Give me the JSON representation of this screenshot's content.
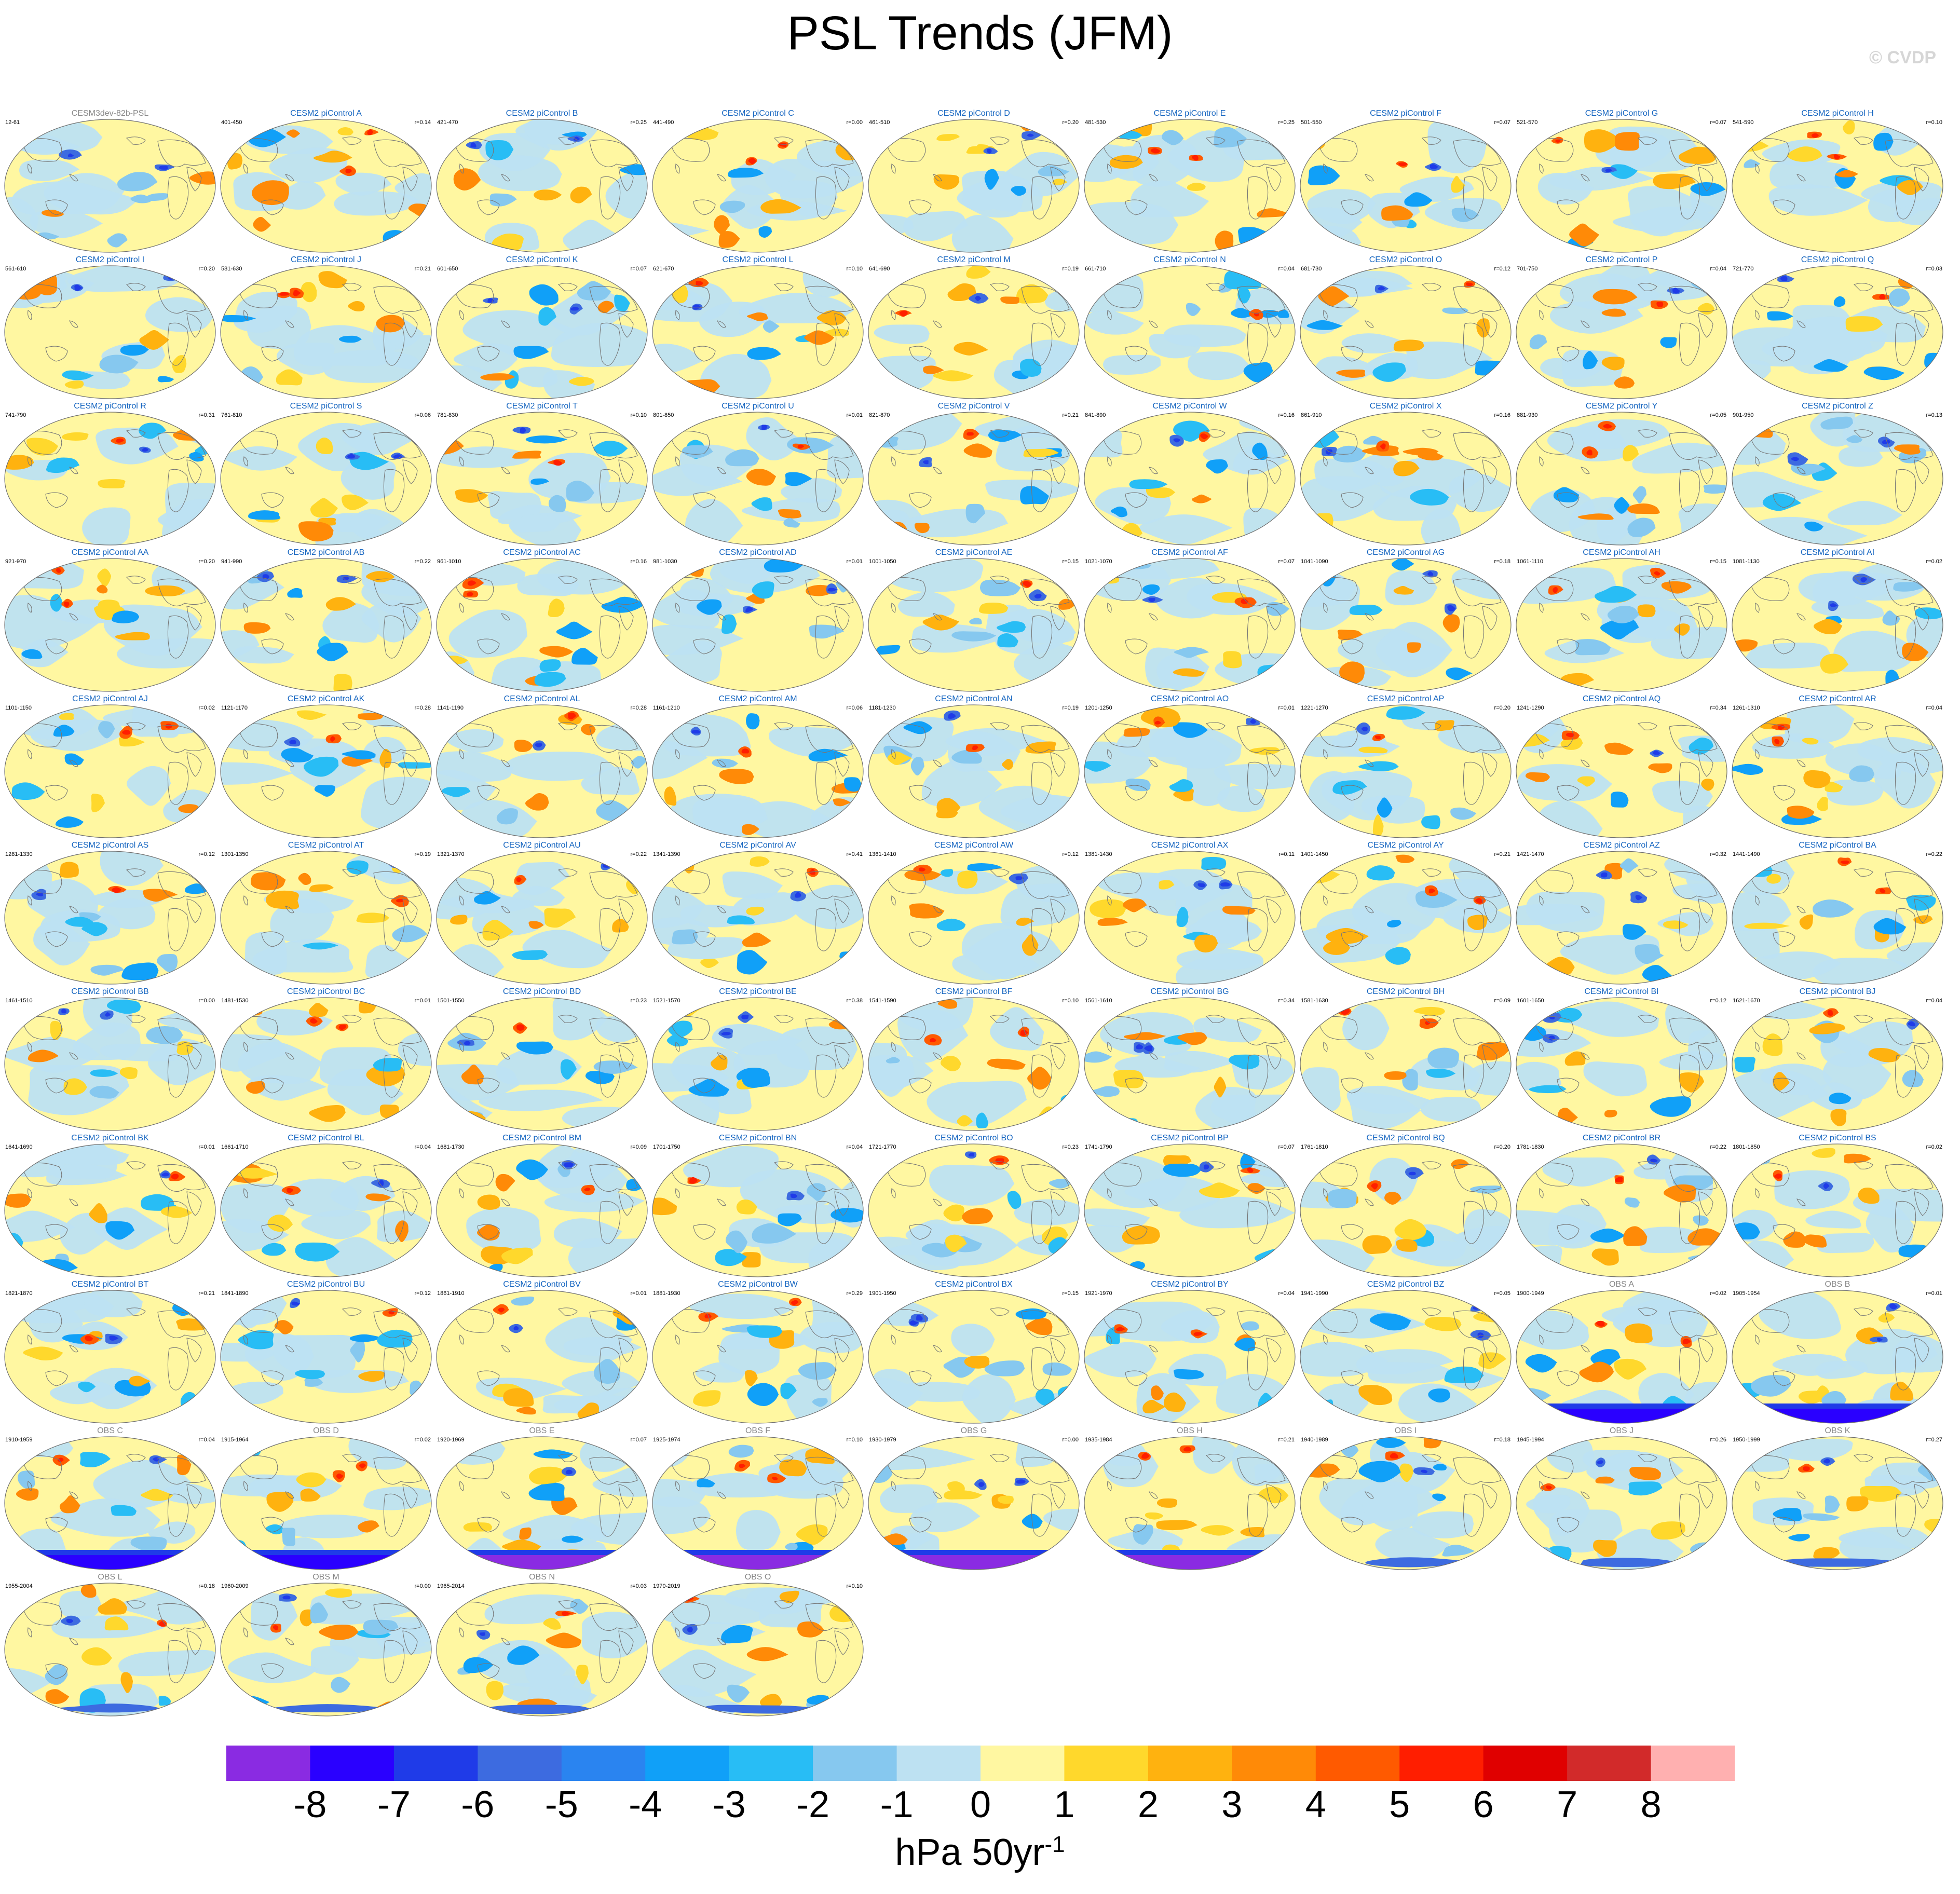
{
  "chart_data": {
    "type": "heatmap",
    "title": "PSL Trends (JFM)",
    "credit": "© CVDP",
    "units": {
      "base": "hPa 50yr",
      "exponent": "-1"
    },
    "colorbar": {
      "levels": [
        "-8",
        "-7",
        "-6",
        "-5",
        "-4",
        "-3",
        "-2",
        "-1",
        "0",
        "1",
        "2",
        "3",
        "4",
        "5",
        "6",
        "7",
        "8"
      ],
      "colors": [
        "#8a2be2",
        "#2a00ff",
        "#1f3be8",
        "#3d6be0",
        "#2a84f0",
        "#10a0f8",
        "#28bdf5",
        "#86c8ef",
        "#bde1f2",
        "#fff7a1",
        "#ffd82c",
        "#ffb20f",
        "#ff8a07",
        "#ff5a00",
        "#ff1e00",
        "#e00000",
        "#d22a2a",
        "#ffb0b0"
      ]
    },
    "panels": [
      {
        "title": "CESM3dev-82b-PSL",
        "years": "12-61",
        "corr": "",
        "kind": "ref"
      },
      {
        "title": "CESM2 piControl A",
        "years": "401-450",
        "corr": "r=0.14",
        "kind": "model"
      },
      {
        "title": "CESM2 piControl B",
        "years": "421-470",
        "corr": "r=0.25",
        "kind": "model"
      },
      {
        "title": "CESM2 piControl C",
        "years": "441-490",
        "corr": "r=0.00",
        "kind": "model"
      },
      {
        "title": "CESM2 piControl D",
        "years": "461-510",
        "corr": "r=0.20",
        "kind": "model"
      },
      {
        "title": "CESM2 piControl E",
        "years": "481-530",
        "corr": "r=0.25",
        "kind": "model"
      },
      {
        "title": "CESM2 piControl F",
        "years": "501-550",
        "corr": "r=0.07",
        "kind": "model"
      },
      {
        "title": "CESM2 piControl G",
        "years": "521-570",
        "corr": "r=0.07",
        "kind": "model"
      },
      {
        "title": "CESM2 piControl H",
        "years": "541-590",
        "corr": "r=0.10",
        "kind": "model"
      },
      {
        "title": "CESM2 piControl I",
        "years": "561-610",
        "corr": "r=0.20",
        "kind": "model"
      },
      {
        "title": "CESM2 piControl J",
        "years": "581-630",
        "corr": "r=0.21",
        "kind": "model"
      },
      {
        "title": "CESM2 piControl K",
        "years": "601-650",
        "corr": "r=0.07",
        "kind": "model"
      },
      {
        "title": "CESM2 piControl L",
        "years": "621-670",
        "corr": "r=0.10",
        "kind": "model"
      },
      {
        "title": "CESM2 piControl M",
        "years": "641-690",
        "corr": "r=0.19",
        "kind": "model"
      },
      {
        "title": "CESM2 piControl N",
        "years": "661-710",
        "corr": "r=0.04",
        "kind": "model"
      },
      {
        "title": "CESM2 piControl O",
        "years": "681-730",
        "corr": "r=0.12",
        "kind": "model"
      },
      {
        "title": "CESM2 piControl P",
        "years": "701-750",
        "corr": "r=0.04",
        "kind": "model"
      },
      {
        "title": "CESM2 piControl Q",
        "years": "721-770",
        "corr": "r=0.03",
        "kind": "model"
      },
      {
        "title": "CESM2 piControl R",
        "years": "741-790",
        "corr": "r=0.31",
        "kind": "model"
      },
      {
        "title": "CESM2 piControl S",
        "years": "761-810",
        "corr": "r=0.06",
        "kind": "model"
      },
      {
        "title": "CESM2 piControl T",
        "years": "781-830",
        "corr": "r=0.10",
        "kind": "model"
      },
      {
        "title": "CESM2 piControl U",
        "years": "801-850",
        "corr": "r=0.01",
        "kind": "model"
      },
      {
        "title": "CESM2 piControl V",
        "years": "821-870",
        "corr": "r=0.21",
        "kind": "model"
      },
      {
        "title": "CESM2 piControl W",
        "years": "841-890",
        "corr": "r=0.16",
        "kind": "model"
      },
      {
        "title": "CESM2 piControl X",
        "years": "861-910",
        "corr": "r=0.16",
        "kind": "model"
      },
      {
        "title": "CESM2 piControl Y",
        "years": "881-930",
        "corr": "r=0.05",
        "kind": "model"
      },
      {
        "title": "CESM2 piControl Z",
        "years": "901-950",
        "corr": "r=0.13",
        "kind": "model"
      },
      {
        "title": "CESM2 piControl AA",
        "years": "921-970",
        "corr": "r=0.20",
        "kind": "model"
      },
      {
        "title": "CESM2 piControl AB",
        "years": "941-990",
        "corr": "r=0.22",
        "kind": "model"
      },
      {
        "title": "CESM2 piControl AC",
        "years": "961-1010",
        "corr": "r=0.16",
        "kind": "model"
      },
      {
        "title": "CESM2 piControl AD",
        "years": "981-1030",
        "corr": "r=0.01",
        "kind": "model"
      },
      {
        "title": "CESM2 piControl AE",
        "years": "1001-1050",
        "corr": "r=0.15",
        "kind": "model"
      },
      {
        "title": "CESM2 piControl AF",
        "years": "1021-1070",
        "corr": "r=0.07",
        "kind": "model"
      },
      {
        "title": "CESM2 piControl AG",
        "years": "1041-1090",
        "corr": "r=0.18",
        "kind": "model"
      },
      {
        "title": "CESM2 piControl AH",
        "years": "1061-1110",
        "corr": "r=0.15",
        "kind": "model"
      },
      {
        "title": "CESM2 piControl AI",
        "years": "1081-1130",
        "corr": "r=0.02",
        "kind": "model"
      },
      {
        "title": "CESM2 piControl AJ",
        "years": "1101-1150",
        "corr": "r=0.02",
        "kind": "model"
      },
      {
        "title": "CESM2 piControl AK",
        "years": "1121-1170",
        "corr": "r=0.28",
        "kind": "model"
      },
      {
        "title": "CESM2 piControl AL",
        "years": "1141-1190",
        "corr": "r=0.28",
        "kind": "model"
      },
      {
        "title": "CESM2 piControl AM",
        "years": "1161-1210",
        "corr": "r=0.06",
        "kind": "model"
      },
      {
        "title": "CESM2 piControl AN",
        "years": "1181-1230",
        "corr": "r=0.19",
        "kind": "model"
      },
      {
        "title": "CESM2 piControl AO",
        "years": "1201-1250",
        "corr": "r=0.01",
        "kind": "model"
      },
      {
        "title": "CESM2 piControl AP",
        "years": "1221-1270",
        "corr": "r=0.20",
        "kind": "model"
      },
      {
        "title": "CESM2 piControl AQ",
        "years": "1241-1290",
        "corr": "r=0.34",
        "kind": "model"
      },
      {
        "title": "CESM2 piControl AR",
        "years": "1261-1310",
        "corr": "r=0.04",
        "kind": "model"
      },
      {
        "title": "CESM2 piControl AS",
        "years": "1281-1330",
        "corr": "r=0.12",
        "kind": "model"
      },
      {
        "title": "CESM2 piControl AT",
        "years": "1301-1350",
        "corr": "r=0.19",
        "kind": "model"
      },
      {
        "title": "CESM2 piControl AU",
        "years": "1321-1370",
        "corr": "r=0.22",
        "kind": "model"
      },
      {
        "title": "CESM2 piControl AV",
        "years": "1341-1390",
        "corr": "r=0.41",
        "kind": "model"
      },
      {
        "title": "CESM2 piControl AW",
        "years": "1361-1410",
        "corr": "r=0.12",
        "kind": "model"
      },
      {
        "title": "CESM2 piControl AX",
        "years": "1381-1430",
        "corr": "r=0.11",
        "kind": "model"
      },
      {
        "title": "CESM2 piControl AY",
        "years": "1401-1450",
        "corr": "r=0.21",
        "kind": "model"
      },
      {
        "title": "CESM2 piControl AZ",
        "years": "1421-1470",
        "corr": "r=0.32",
        "kind": "model"
      },
      {
        "title": "CESM2 piControl BA",
        "years": "1441-1490",
        "corr": "r=0.22",
        "kind": "model"
      },
      {
        "title": "CESM2 piControl BB",
        "years": "1461-1510",
        "corr": "r=0.00",
        "kind": "model"
      },
      {
        "title": "CESM2 piControl BC",
        "years": "1481-1530",
        "corr": "r=0.01",
        "kind": "model"
      },
      {
        "title": "CESM2 piControl BD",
        "years": "1501-1550",
        "corr": "r=0.23",
        "kind": "model"
      },
      {
        "title": "CESM2 piControl BE",
        "years": "1521-1570",
        "corr": "r=0.38",
        "kind": "model"
      },
      {
        "title": "CESM2 piControl BF",
        "years": "1541-1590",
        "corr": "r=0.10",
        "kind": "model"
      },
      {
        "title": "CESM2 piControl BG",
        "years": "1561-1610",
        "corr": "r=0.34",
        "kind": "model"
      },
      {
        "title": "CESM2 piControl BH",
        "years": "1581-1630",
        "corr": "r=0.09",
        "kind": "model"
      },
      {
        "title": "CESM2 piControl BI",
        "years": "1601-1650",
        "corr": "r=0.12",
        "kind": "model"
      },
      {
        "title": "CESM2 piControl BJ",
        "years": "1621-1670",
        "corr": "r=0.04",
        "kind": "model"
      },
      {
        "title": "CESM2 piControl BK",
        "years": "1641-1690",
        "corr": "r=0.01",
        "kind": "model"
      },
      {
        "title": "CESM2 piControl BL",
        "years": "1661-1710",
        "corr": "r=0.04",
        "kind": "model"
      },
      {
        "title": "CESM2 piControl BM",
        "years": "1681-1730",
        "corr": "r=0.09",
        "kind": "model"
      },
      {
        "title": "CESM2 piControl BN",
        "years": "1701-1750",
        "corr": "r=0.04",
        "kind": "model"
      },
      {
        "title": "CESM2 piControl BO",
        "years": "1721-1770",
        "corr": "r=0.23",
        "kind": "model"
      },
      {
        "title": "CESM2 piControl BP",
        "years": "1741-1790",
        "corr": "r=0.07",
        "kind": "model"
      },
      {
        "title": "CESM2 piControl BQ",
        "years": "1761-1810",
        "corr": "r=0.20",
        "kind": "model"
      },
      {
        "title": "CESM2 piControl BR",
        "years": "1781-1830",
        "corr": "r=0.22",
        "kind": "model"
      },
      {
        "title": "CESM2 piControl BS",
        "years": "1801-1850",
        "corr": "r=0.02",
        "kind": "model"
      },
      {
        "title": "CESM2 piControl BT",
        "years": "1821-1870",
        "corr": "r=0.21",
        "kind": "model"
      },
      {
        "title": "CESM2 piControl BU",
        "years": "1841-1890",
        "corr": "r=0.12",
        "kind": "model"
      },
      {
        "title": "CESM2 piControl BV",
        "years": "1861-1910",
        "corr": "r=0.01",
        "kind": "model"
      },
      {
        "title": "CESM2 piControl BW",
        "years": "1881-1930",
        "corr": "r=0.29",
        "kind": "model"
      },
      {
        "title": "CESM2 piControl BX",
        "years": "1901-1950",
        "corr": "r=0.15",
        "kind": "model"
      },
      {
        "title": "CESM2 piControl BY",
        "years": "1921-1970",
        "corr": "r=0.04",
        "kind": "model"
      },
      {
        "title": "CESM2 piControl BZ",
        "years": "1941-1990",
        "corr": "r=0.05",
        "kind": "model"
      },
      {
        "title": "OBS A",
        "years": "1900-1949",
        "corr": "r=0.02",
        "kind": "obs"
      },
      {
        "title": "OBS B",
        "years": "1905-1954",
        "corr": "r=0.01",
        "kind": "obs"
      },
      {
        "title": "OBS C",
        "years": "1910-1959",
        "corr": "r=0.04",
        "kind": "obs"
      },
      {
        "title": "OBS D",
        "years": "1915-1964",
        "corr": "r=0.02",
        "kind": "obs"
      },
      {
        "title": "OBS E",
        "years": "1920-1969",
        "corr": "r=0.07",
        "kind": "obs"
      },
      {
        "title": "OBS F",
        "years": "1925-1974",
        "corr": "r=0.10",
        "kind": "obs"
      },
      {
        "title": "OBS G",
        "years": "1930-1979",
        "corr": "r=0.00",
        "kind": "obs"
      },
      {
        "title": "OBS H",
        "years": "1935-1984",
        "corr": "r=0.21",
        "kind": "obs"
      },
      {
        "title": "OBS I",
        "years": "1940-1989",
        "corr": "r=0.18",
        "kind": "obs"
      },
      {
        "title": "OBS J",
        "years": "1945-1994",
        "corr": "r=0.26",
        "kind": "obs"
      },
      {
        "title": "OBS K",
        "years": "1950-1999",
        "corr": "r=0.27",
        "kind": "obs"
      },
      {
        "title": "OBS L",
        "years": "1955-2004",
        "corr": "r=0.18",
        "kind": "obs"
      },
      {
        "title": "OBS M",
        "years": "1960-2009",
        "corr": "r=0.00",
        "kind": "obs"
      },
      {
        "title": "OBS N",
        "years": "1965-2014",
        "corr": "r=0.03",
        "kind": "obs"
      },
      {
        "title": "OBS O",
        "years": "1970-2019",
        "corr": "r=0.10",
        "kind": "obs"
      }
    ]
  },
  "colors": {
    "model_title": "#1565c0",
    "obs_title": "#888888",
    "ref_title": "#888888",
    "coast": "#777777",
    "ocean_base": "#fff7a1"
  }
}
